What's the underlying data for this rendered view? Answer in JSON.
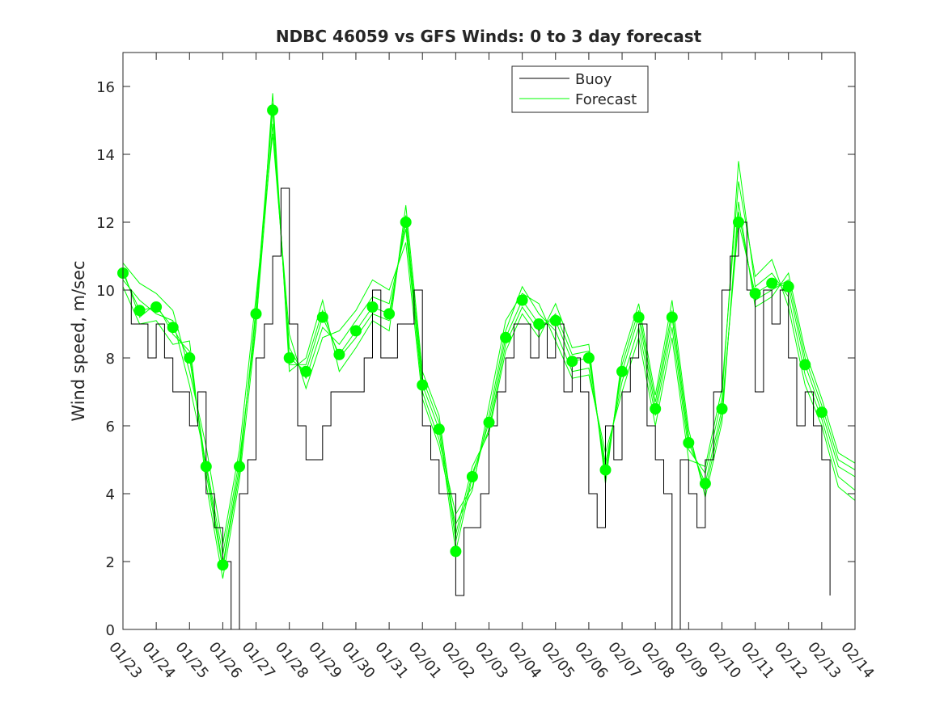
{
  "chart_data": {
    "type": "line",
    "title": "NDBC 46059 vs GFS Winds: 0 to 3 day forecast",
    "xlabel": "",
    "ylabel": "Wind speed, m/sec",
    "xlim": [
      0,
      22
    ],
    "ylim": [
      0,
      17
    ],
    "y_ticks": [
      0,
      2,
      4,
      6,
      8,
      10,
      12,
      14,
      16
    ],
    "x_ticks": [
      0,
      1,
      2,
      3,
      4,
      5,
      6,
      7,
      8,
      9,
      10,
      11,
      12,
      13,
      14,
      15,
      16,
      17,
      18,
      19,
      20,
      21,
      22
    ],
    "x_tick_labels": [
      "01/23",
      "01/24",
      "01/25",
      "01/26",
      "01/27",
      "01/28",
      "01/29",
      "01/30",
      "01/31",
      "02/01",
      "02/02",
      "02/03",
      "02/04",
      "02/05",
      "02/06",
      "02/07",
      "02/08",
      "02/09",
      "02/10",
      "02/11",
      "02/12",
      "02/13",
      "02/14"
    ],
    "legend": {
      "position": "top-right",
      "entries": [
        {
          "name": "Buoy",
          "color": "#000000"
        },
        {
          "name": "Forecast",
          "color": "#00ff00"
        }
      ]
    },
    "buoy": {
      "name": "Buoy",
      "color": "#000000",
      "x": [
        0,
        0.25,
        0.5,
        0.75,
        1,
        1.25,
        1.5,
        1.75,
        2,
        2.25,
        2.5,
        2.75,
        3,
        3.25,
        3.5,
        3.75,
        4,
        4.25,
        4.5,
        4.75,
        5,
        5.25,
        5.5,
        5.75,
        6,
        6.25,
        6.5,
        6.75,
        7,
        7.25,
        7.5,
        7.75,
        8,
        8.25,
        8.5,
        8.75,
        9,
        9.25,
        9.5,
        9.75,
        10,
        10.25,
        10.5,
        10.75,
        11,
        11.25,
        11.5,
        11.75,
        12,
        12.25,
        12.5,
        12.75,
        13,
        13.25,
        13.5,
        13.75,
        14,
        14.25,
        14.5,
        14.75,
        15,
        15.25,
        15.5,
        15.75,
        16,
        16.25,
        16.5,
        16.75,
        17,
        17.25,
        17.5,
        17.75,
        18,
        18.25,
        18.5,
        18.75,
        19,
        19.25,
        19.5,
        19.75,
        20,
        20.25,
        20.5,
        20.75,
        21,
        21.25
      ],
      "values": [
        10,
        9,
        9,
        8,
        9,
        8,
        7,
        7,
        6,
        7,
        4,
        3,
        2,
        0,
        4,
        5,
        8,
        9,
        11,
        13,
        9,
        6,
        5,
        5,
        6,
        7,
        7,
        7,
        7,
        8,
        10,
        8,
        8,
        9,
        9,
        10,
        6,
        5,
        4,
        4,
        1,
        3,
        3,
        4,
        6,
        7,
        8,
        9,
        9,
        8,
        9,
        8,
        9,
        7,
        8,
        7,
        4,
        3,
        6,
        5,
        7,
        8,
        9,
        6,
        5,
        4,
        0,
        5,
        4,
        3,
        5,
        7,
        10,
        11,
        12,
        10,
        7,
        10,
        9,
        10,
        8,
        6,
        7,
        6,
        5,
        1
      ]
    },
    "forecast": {
      "name": "Forecast",
      "color": "#00ff00",
      "x": [
        0,
        0.5,
        1,
        1.5,
        2,
        2.5,
        3,
        3.5,
        4,
        4.5,
        5,
        5.5,
        6,
        6.5,
        7,
        7.5,
        8,
        8.5,
        9,
        9.5,
        10,
        10.5,
        11,
        11.5,
        12,
        12.5,
        13,
        13.5,
        14,
        14.5,
        15,
        15.5,
        16,
        16.5,
        17,
        17.5,
        18,
        18.5,
        19,
        19.5,
        20,
        20.5,
        21,
        21.5,
        22
      ],
      "series": [
        {
          "name": "Forecast 1",
          "values": [
            10.5,
            9.4,
            9.5,
            8.9,
            8.0,
            4.8,
            1.9,
            4.8,
            9.3,
            15.3,
            8.0,
            7.6,
            9.2,
            8.1,
            8.8,
            9.5,
            9.3,
            12.0,
            7.2,
            5.9,
            2.3,
            4.5,
            6.1,
            8.6,
            9.7,
            9.0,
            9.1,
            7.9,
            8.0,
            4.7,
            7.6,
            9.2,
            6.5,
            9.2,
            5.5,
            4.3,
            6.5,
            12.0,
            9.9,
            10.2,
            10.1,
            7.8,
            6.4,
            4.8,
            4.5
          ]
        },
        {
          "name": "Forecast 2",
          "values": [
            10.8,
            10.2,
            9.9,
            9.4,
            7.6,
            5.4,
            2.5,
            5.3,
            9.8,
            14.6,
            8.7,
            7.1,
            8.6,
            8.8,
            9.4,
            10.3,
            10.0,
            11.4,
            6.8,
            5.4,
            3.1,
            4.1,
            6.6,
            9.1,
            9.9,
            9.6,
            8.5,
            7.4,
            7.5,
            5.2,
            7.0,
            8.6,
            6.0,
            8.6,
            5.0,
            4.8,
            7.1,
            13.2,
            10.4,
            10.9,
            9.5,
            7.2,
            6.0,
            4.2,
            3.8
          ]
        },
        {
          "name": "Forecast 3",
          "values": [
            10.1,
            9.0,
            9.1,
            8.4,
            8.5,
            4.3,
            1.5,
            4.4,
            8.9,
            15.8,
            7.6,
            8.0,
            9.7,
            7.6,
            8.3,
            9.1,
            8.8,
            12.5,
            7.6,
            6.3,
            2.8,
            4.8,
            5.8,
            8.2,
            9.3,
            8.6,
            9.6,
            8.3,
            8.4,
            4.3,
            8.0,
            9.6,
            6.9,
            9.7,
            5.9,
            3.9,
            6.1,
            12.6,
            9.5,
            9.8,
            10.5,
            8.2,
            6.8,
            5.2,
            4.9
          ]
        },
        {
          "name": "Forecast 4",
          "values": [
            10.3,
            9.7,
            9.3,
            9.1,
            7.2,
            4.9,
            2.2,
            5.0,
            9.0,
            14.9,
            8.3,
            7.4,
            8.9,
            8.4,
            9.1,
            9.8,
            9.6,
            11.8,
            7.0,
            5.6,
            3.4,
            4.2,
            6.3,
            8.8,
            10.1,
            9.3,
            8.8,
            7.6,
            7.7,
            4.9,
            7.3,
            8.9,
            6.3,
            8.9,
            5.3,
            4.6,
            6.8,
            13.8,
            10.1,
            10.5,
            9.8,
            7.5,
            6.2,
            4.5,
            4.1
          ]
        },
        {
          "name": "Forecast 5",
          "values": [
            10.6,
            9.2,
            9.6,
            8.7,
            8.2,
            4.6,
            1.8,
            4.6,
            9.5,
            15.5,
            7.8,
            7.8,
            9.4,
            8.0,
            8.6,
            9.3,
            9.1,
            12.2,
            7.4,
            6.1,
            2.6,
            4.6,
            5.9,
            8.4,
            9.5,
            8.8,
            9.3,
            8.1,
            8.2,
            4.5,
            7.8,
            9.4,
            6.7,
            9.4,
            5.7,
            4.1,
            6.3,
            12.3,
            9.7,
            10.0,
            10.3,
            8.0,
            6.6,
            5.0,
            4.7
          ]
        }
      ]
    },
    "forecast_markers": {
      "x": [
        0,
        0.5,
        1,
        1.5,
        2,
        2.5,
        3,
        3.5,
        4,
        4.5,
        5,
        5.5,
        6,
        6.5,
        7,
        7.5,
        8,
        8.5,
        9,
        9.5,
        10,
        10.5,
        11,
        11.5,
        12,
        12.5,
        13,
        13.5,
        14,
        14.5,
        15,
        15.5,
        16,
        16.5,
        17,
        17.5,
        18,
        18.5,
        19,
        19.5,
        20,
        20.5,
        21
      ],
      "values": [
        10.5,
        9.4,
        9.5,
        8.9,
        8.0,
        4.8,
        1.9,
        4.8,
        9.3,
        15.3,
        8.0,
        7.6,
        9.2,
        8.1,
        8.8,
        9.5,
        9.3,
        12.0,
        7.2,
        5.9,
        2.3,
        4.5,
        6.1,
        8.6,
        9.7,
        9.0,
        9.1,
        7.9,
        8.0,
        4.7,
        7.6,
        9.2,
        6.5,
        9.2,
        5.5,
        4.3,
        6.5,
        12.0,
        9.9,
        10.2,
        10.1,
        7.8,
        6.4
      ]
    }
  }
}
